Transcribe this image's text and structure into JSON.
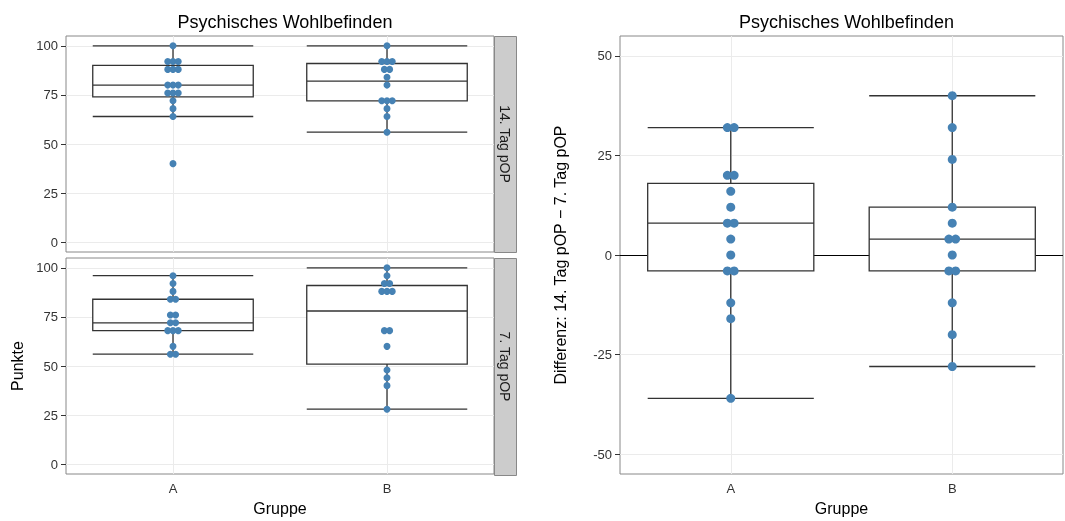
{
  "chart_data": [
    {
      "type": "box",
      "title": "Psychisches Wohlbefinden",
      "annotations": [
        "14. Tag pOP"
      ],
      "categories": [
        "A",
        "B"
      ],
      "tick_labels": "y",
      "ylim": [
        -5,
        105
      ],
      "yticks": [
        0,
        25,
        50,
        75,
        100
      ],
      "grid": true,
      "boxes": [
        {
          "low": 64,
          "q1": 74,
          "median": 80,
          "q3": 90,
          "high": 100
        },
        {
          "low": 56,
          "q1": 72,
          "median": 82,
          "q3": 91,
          "high": 100
        }
      ],
      "series": [
        {
          "type": "scatter",
          "color": "#4682b4",
          "x": [
            "A",
            "A",
            "A",
            "A",
            "A",
            "A",
            "A",
            "A",
            "A",
            "A",
            "A",
            "A",
            "A",
            "A",
            "A",
            "A",
            "A",
            "B",
            "B",
            "B",
            "B",
            "B",
            "B",
            "B",
            "B",
            "B",
            "B",
            "B",
            "B",
            "B",
            "B"
          ],
          "values": [
            100,
            92,
            92,
            92,
            88,
            88,
            88,
            80,
            80,
            80,
            76,
            76,
            76,
            72,
            68,
            64,
            40,
            100,
            92,
            92,
            92,
            88,
            88,
            84,
            80,
            72,
            72,
            72,
            68,
            64,
            56
          ]
        }
      ]
    },
    {
      "type": "box",
      "annotations": [
        "7. Tag pOP"
      ],
      "ylabel": "Punkte",
      "xlabel": "Gruppe",
      "categories": [
        "A",
        "B"
      ],
      "ylim": [
        -5,
        105
      ],
      "yticks": [
        0,
        25,
        50,
        75,
        100
      ],
      "grid": true,
      "boxes": [
        {
          "low": 56,
          "q1": 68,
          "median": 72,
          "q3": 84,
          "high": 96
        },
        {
          "low": 28,
          "q1": 51,
          "median": 78,
          "q3": 91,
          "high": 100
        }
      ],
      "series": [
        {
          "type": "scatter",
          "color": "#4682b4",
          "x": [
            "A",
            "A",
            "A",
            "A",
            "A",
            "A",
            "A",
            "A",
            "A",
            "A",
            "A",
            "A",
            "A",
            "A",
            "A",
            "B",
            "B",
            "B",
            "B",
            "B",
            "B",
            "B",
            "B",
            "B",
            "B",
            "B",
            "B",
            "B",
            "B"
          ],
          "values": [
            96,
            92,
            88,
            84,
            84,
            76,
            76,
            72,
            72,
            68,
            68,
            68,
            60,
            56,
            56,
            100,
            96,
            92,
            92,
            88,
            88,
            88,
            68,
            68,
            60,
            48,
            44,
            40,
            28
          ]
        }
      ]
    },
    {
      "type": "box",
      "title": "Psychisches Wohlbefinden",
      "ylabel": "Differenz: 14. Tag pOP − 7. Tag pOP",
      "xlabel": "Gruppe",
      "categories": [
        "A",
        "B"
      ],
      "ylim": [
        -55,
        55
      ],
      "yticks": [
        -50,
        -25,
        0,
        25,
        50
      ],
      "grid": true,
      "ref_lines": [
        {
          "axis": "y",
          "value": 0,
          "color": "#000000"
        }
      ],
      "boxes": [
        {
          "low": -36,
          "q1": -4,
          "median": 8,
          "q3": 18,
          "high": 32
        },
        {
          "low": -28,
          "q1": -4,
          "median": 4,
          "q3": 12,
          "high": 40
        }
      ],
      "series": [
        {
          "type": "scatter",
          "color": "#4682b4",
          "x": [
            "A",
            "A",
            "A",
            "A",
            "A",
            "A",
            "A",
            "A",
            "A",
            "A",
            "A",
            "A",
            "A",
            "A",
            "A",
            "B",
            "B",
            "B",
            "B",
            "B",
            "B",
            "B",
            "B",
            "B",
            "B",
            "B",
            "B",
            "B"
          ],
          "values": [
            32,
            32,
            20,
            20,
            16,
            12,
            8,
            8,
            4,
            0,
            -4,
            -4,
            -12,
            -16,
            -36,
            40,
            32,
            24,
            12,
            8,
            4,
            4,
            0,
            -4,
            -4,
            -12,
            -20,
            -28
          ]
        }
      ]
    }
  ]
}
